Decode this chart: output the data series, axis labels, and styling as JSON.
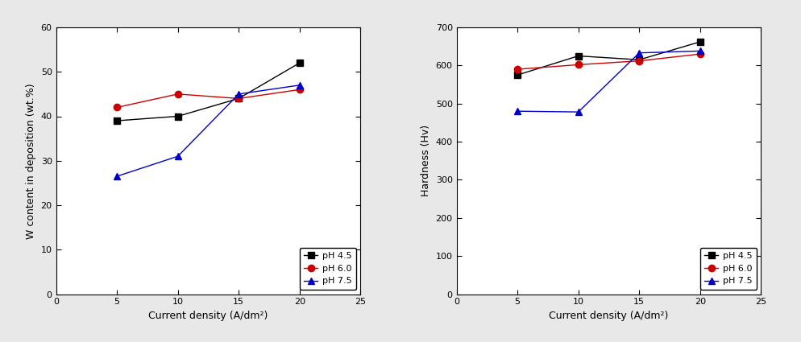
{
  "x": [
    5,
    10,
    15,
    20
  ],
  "left": {
    "ylabel": "W content in deposition (wt.%)",
    "xlabel": "Current density (A/dm²)",
    "ylim": [
      0,
      60
    ],
    "xlim": [
      0,
      25
    ],
    "yticks": [
      0,
      10,
      20,
      30,
      40,
      50,
      60
    ],
    "xticks": [
      0,
      5,
      10,
      15,
      20,
      25
    ],
    "series": [
      {
        "label": "pH 4.5",
        "color": "#000000",
        "marker": "s",
        "y": [
          39,
          40,
          44,
          52
        ]
      },
      {
        "label": "pH 6.0",
        "color": "#cc0000",
        "marker": "o",
        "y": [
          42,
          45,
          44,
          46
        ]
      },
      {
        "label": "pH 7.5",
        "color": "#0000cc",
        "marker": "^",
        "y": [
          26.5,
          31,
          45,
          47
        ]
      }
    ]
  },
  "right": {
    "ylabel": "Hardness (Hv)",
    "xlabel": "Current density (A/dm²)",
    "ylim": [
      0,
      700
    ],
    "xlim": [
      0,
      25
    ],
    "yticks": [
      0,
      100,
      200,
      300,
      400,
      500,
      600,
      700
    ],
    "xticks": [
      0,
      5,
      10,
      15,
      20,
      25
    ],
    "series": [
      {
        "label": "pH 4.5",
        "color": "#000000",
        "marker": "s",
        "y": [
          575,
          625,
          615,
          662
        ]
      },
      {
        "label": "pH 6.0",
        "color": "#cc0000",
        "marker": "o",
        "y": [
          590,
          602,
          612,
          630
        ]
      },
      {
        "label": "pH 7.5",
        "color": "#0000cc",
        "marker": "^",
        "y": [
          480,
          478,
          633,
          638
        ]
      }
    ]
  },
  "legend_loc": "lower right",
  "markersize": 6,
  "linewidth": 1.0,
  "fontsize_label": 9,
  "fontsize_tick": 8,
  "fontsize_legend": 8,
  "fig_bgcolor": "#e8e8e8",
  "ax_bgcolor": "#ffffff"
}
